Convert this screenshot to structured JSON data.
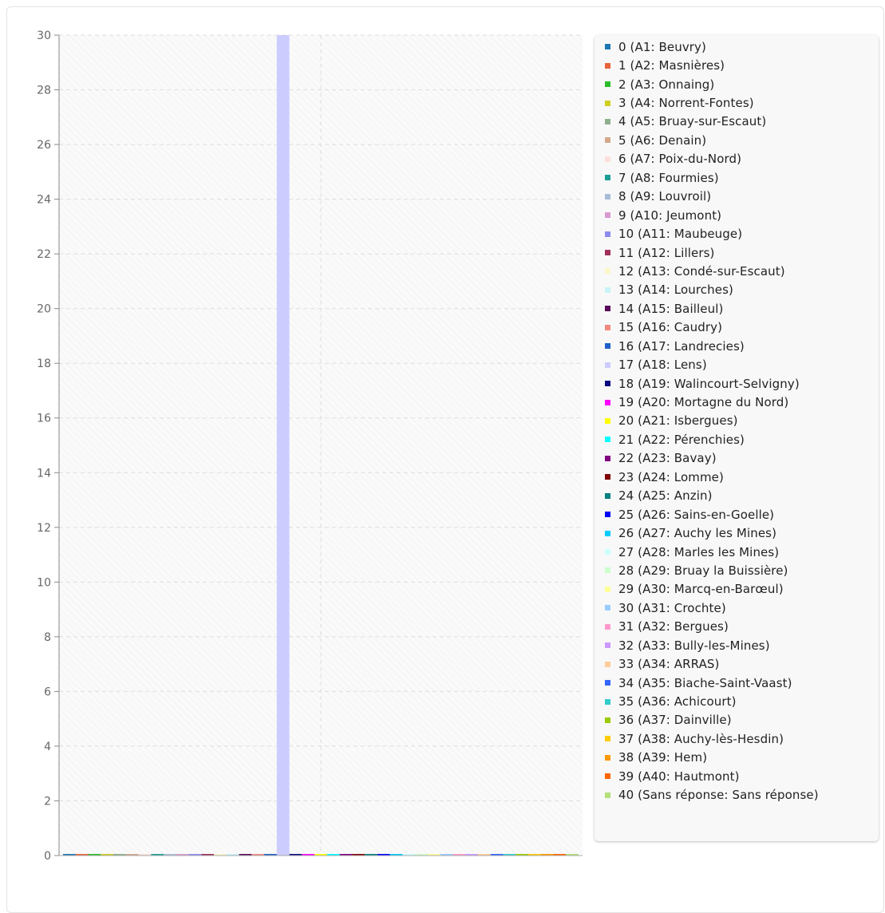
{
  "chart_data": {
    "type": "bar",
    "title": "",
    "xlabel": "",
    "ylabel": "",
    "ylim": [
      0,
      30
    ],
    "y_ticks": [
      0,
      2,
      4,
      6,
      8,
      10,
      12,
      14,
      16,
      18,
      20,
      22,
      24,
      26,
      28,
      30
    ],
    "y_tick_labels": [
      "0",
      "2",
      "4",
      "6",
      "8",
      "10",
      "12",
      "14",
      "16",
      "18",
      "20",
      "22",
      "24",
      "26",
      "28",
      "30"
    ],
    "grid": true,
    "legend_position": "right",
    "series": [
      {
        "label": "0 (A1: Beuvry)",
        "value": 0,
        "color": "#1f77b4"
      },
      {
        "label": "1 (A2: Masnières)",
        "value": 0,
        "color": "#e8643c"
      },
      {
        "label": "2 (A3: Onnaing)",
        "value": 0,
        "color": "#2bbd2b"
      },
      {
        "label": "3 (A4: Norrent-Fontes)",
        "value": 0,
        "color": "#cfcf1f"
      },
      {
        "label": "4 (A5: Bruay-sur-Escaut)",
        "value": 0,
        "color": "#8fb08f"
      },
      {
        "label": "5 (A6: Denain)",
        "value": 0,
        "color": "#d4a88a"
      },
      {
        "label": "6 (A7: Poix-du-Nord)",
        "value": 0,
        "color": "#fde0dc"
      },
      {
        "label": "7 (A8: Fourmies)",
        "value": 0,
        "color": "#1a9e96"
      },
      {
        "label": "8 (A9: Louvroil)",
        "value": 0,
        "color": "#a8bcd8"
      },
      {
        "label": "9 (A10: Jeumont)",
        "value": 0,
        "color": "#d89ad0"
      },
      {
        "label": "10 (A11: Maubeuge)",
        "value": 0,
        "color": "#8c8cf0"
      },
      {
        "label": "11 (A12: Lillers)",
        "value": 0,
        "color": "#a0305a"
      },
      {
        "label": "12 (A13: Condé-sur-Escaut)",
        "value": 0,
        "color": "#fbf7c8"
      },
      {
        "label": "13 (A14: Lourches)",
        "value": 0,
        "color": "#c8f4f8"
      },
      {
        "label": "14 (A15: Bailleul)",
        "value": 0,
        "color": "#5a0a5a"
      },
      {
        "label": "15 (A16: Caudry)",
        "value": 0,
        "color": "#f08a80"
      },
      {
        "label": "16 (A17: Landrecies)",
        "value": 0,
        "color": "#1f5fc8"
      },
      {
        "label": "17 (A18: Lens)",
        "value": 30,
        "color": "#ccccff"
      },
      {
        "label": "18 (A19: Walincourt-Selvigny)",
        "value": 0,
        "color": "#0a0a80"
      },
      {
        "label": "19 (A20: Mortagne du Nord)",
        "value": 0,
        "color": "#ff00ff"
      },
      {
        "label": "20 (A21: Isbergues)",
        "value": 0,
        "color": "#ffff00"
      },
      {
        "label": "21 (A22: Pérenchies)",
        "value": 0,
        "color": "#00ffff"
      },
      {
        "label": "22 (A23: Bavay)",
        "value": 0,
        "color": "#800080"
      },
      {
        "label": "23 (A24: Lomme)",
        "value": 0,
        "color": "#800000"
      },
      {
        "label": "24 (A25: Anzin)",
        "value": 0,
        "color": "#008080"
      },
      {
        "label": "25 (A26: Sains-en-Goelle)",
        "value": 0,
        "color": "#0000ff"
      },
      {
        "label": "26 (A27: Auchy les Mines)",
        "value": 0,
        "color": "#00ccff"
      },
      {
        "label": "27 (A28: Marles les Mines)",
        "value": 0,
        "color": "#ccffff"
      },
      {
        "label": "28 (A29: Bruay la Buissière)",
        "value": 0,
        "color": "#ccffcc"
      },
      {
        "label": "29 (A30: Marcq-en-Barœul)",
        "value": 0,
        "color": "#ffff99"
      },
      {
        "label": "30 (A31: Crochte)",
        "value": 0,
        "color": "#99ccff"
      },
      {
        "label": "31 (A32: Bergues)",
        "value": 0,
        "color": "#ff99cc"
      },
      {
        "label": "32 (A33: Bully-les-Mines)",
        "value": 0,
        "color": "#cc99ff"
      },
      {
        "label": "33 (A34: ARRAS)",
        "value": 0,
        "color": "#ffcc99"
      },
      {
        "label": "34 (A35: Biache-Saint-Vaast)",
        "value": 0,
        "color": "#3366ff"
      },
      {
        "label": "35 (A36: Achicourt)",
        "value": 0,
        "color": "#33cccc"
      },
      {
        "label": "36 (A37: Dainville)",
        "value": 0,
        "color": "#99cc00"
      },
      {
        "label": "37 (A38: Auchy-lès-Hesdin)",
        "value": 0,
        "color": "#ffcc00"
      },
      {
        "label": "38 (A39: Hem)",
        "value": 0,
        "color": "#ff9900"
      },
      {
        "label": "39 (A40: Hautmont)",
        "value": 0,
        "color": "#ff6600"
      },
      {
        "label": "40 (Sans réponse: Sans réponse)",
        "value": 0,
        "color": "#b3e07a"
      }
    ]
  }
}
